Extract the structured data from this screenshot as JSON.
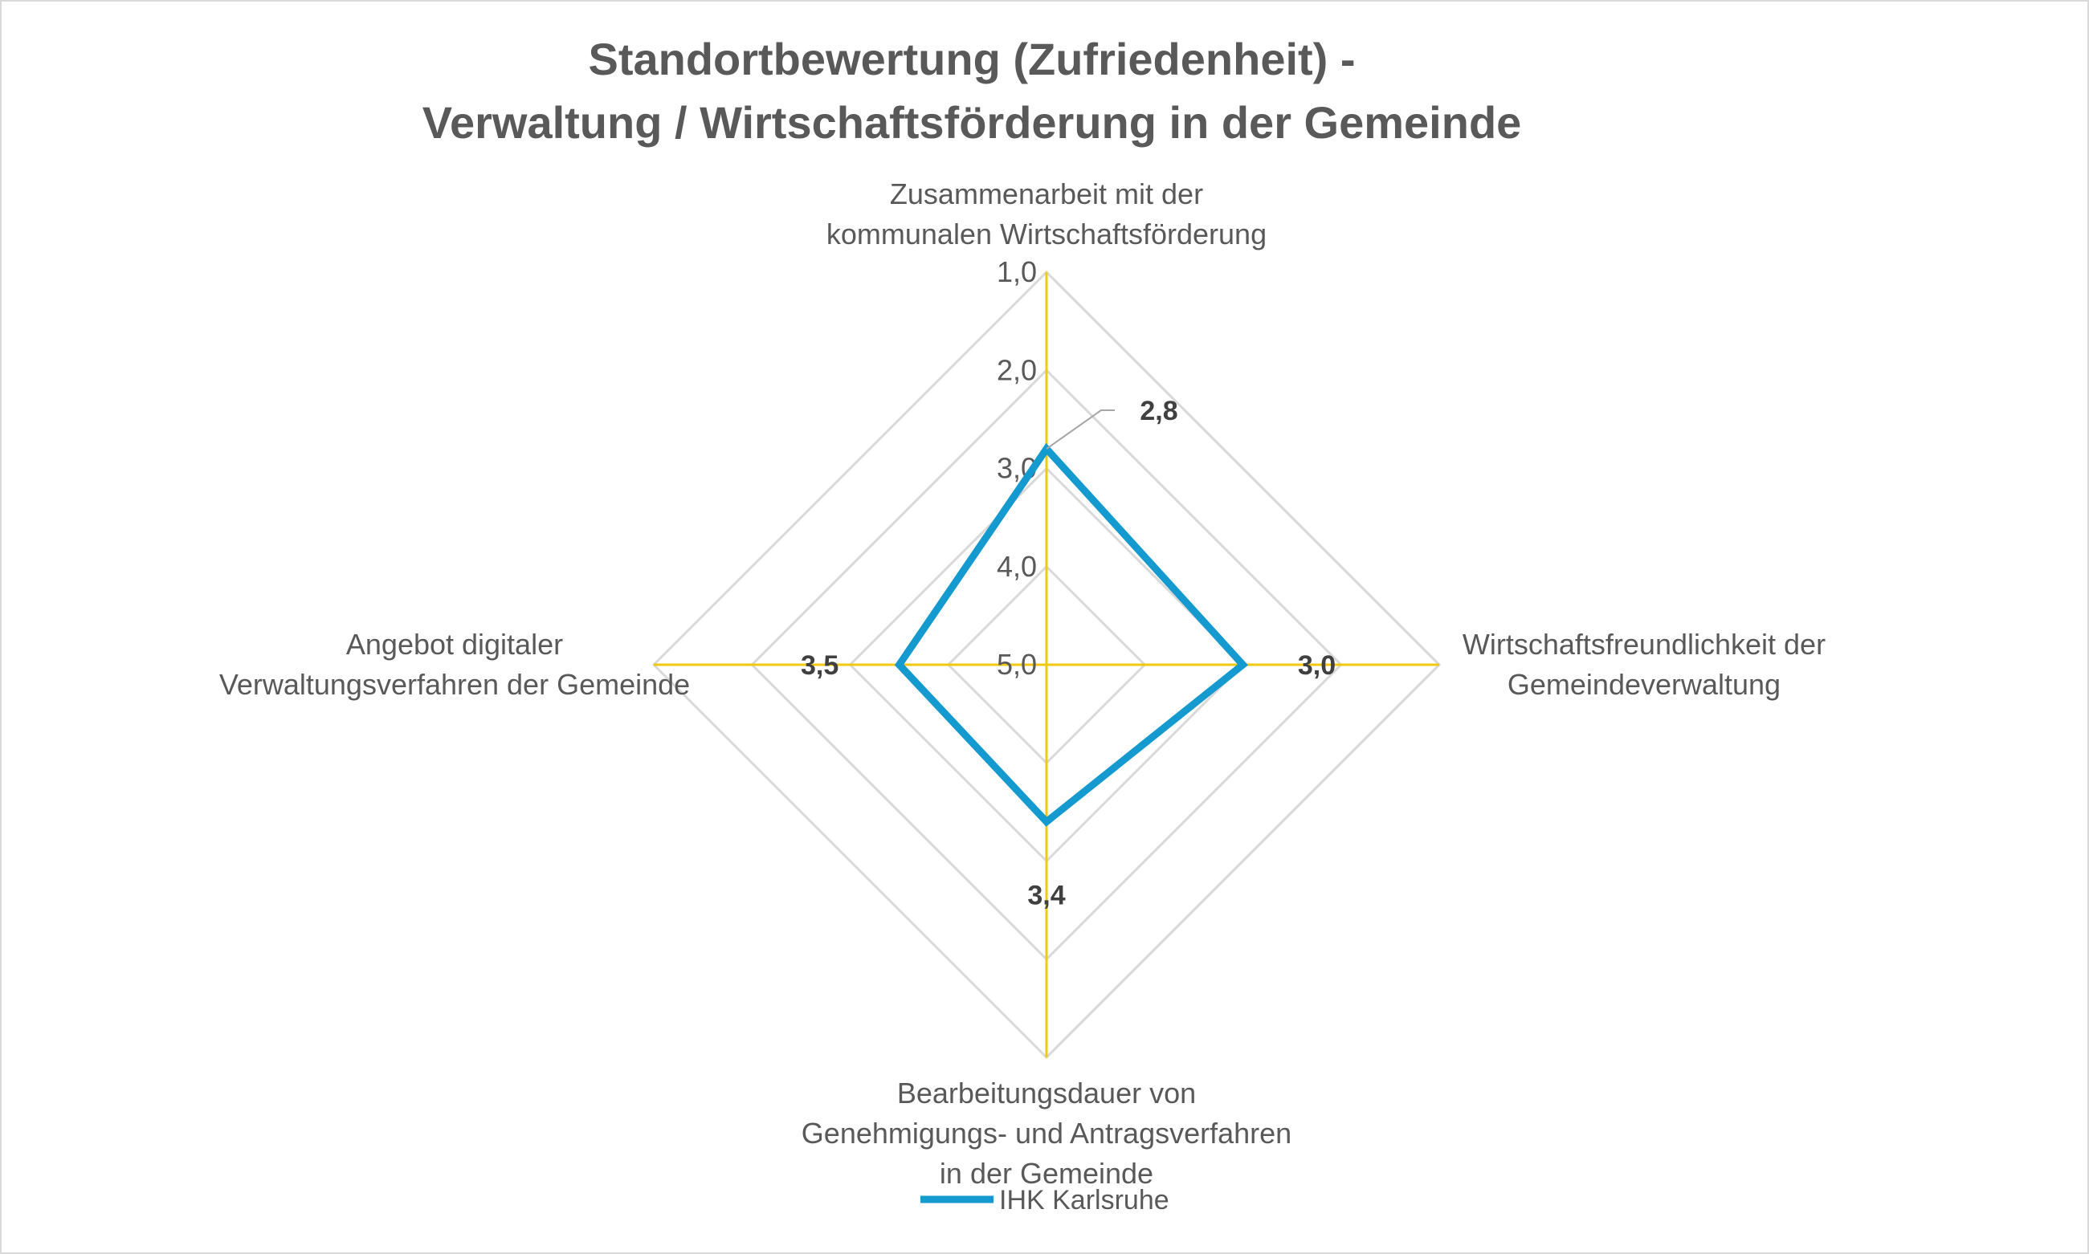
{
  "chart_data": {
    "type": "radar",
    "title_lines": [
      "Standortbewertung (Zufriedenheit) -",
      "Verwaltung / Wirtschaftsförderung in der Gemeinde"
    ],
    "categories": [
      [
        "Zusammenarbeit mit der",
        "kommunalen Wirtschaftsförderung"
      ],
      [
        "Wirtschaftsfreundlichkeit der",
        "Gemeindeverwaltung"
      ],
      [
        "Bearbeitungsdauer von",
        "Genehmigungs- und Antragsverfahren",
        "in der Gemeinde"
      ],
      [
        "Angebot digitaler",
        "Verwaltungsverfahren der Gemeinde"
      ]
    ],
    "axis": {
      "min": 1.0,
      "max": 5.0,
      "step": 1.0,
      "reversed": true,
      "tick_labels": [
        "1,0",
        "2,0",
        "3,0",
        "4,0",
        "5,0"
      ]
    },
    "series": [
      {
        "name": "IHK Karlsruhe",
        "values": [
          2.8,
          3.0,
          3.4,
          3.5
        ],
        "value_labels": [
          "2,8",
          "3,0",
          "3,4",
          "3,5"
        ]
      }
    ],
    "legend": {
      "position": "bottom"
    },
    "colors": {
      "series": "#159ad0",
      "axis_lines": "#f2c811",
      "grid": "#d9d9d9",
      "text": "#595959",
      "leader_line": "#a6a6a6"
    }
  }
}
